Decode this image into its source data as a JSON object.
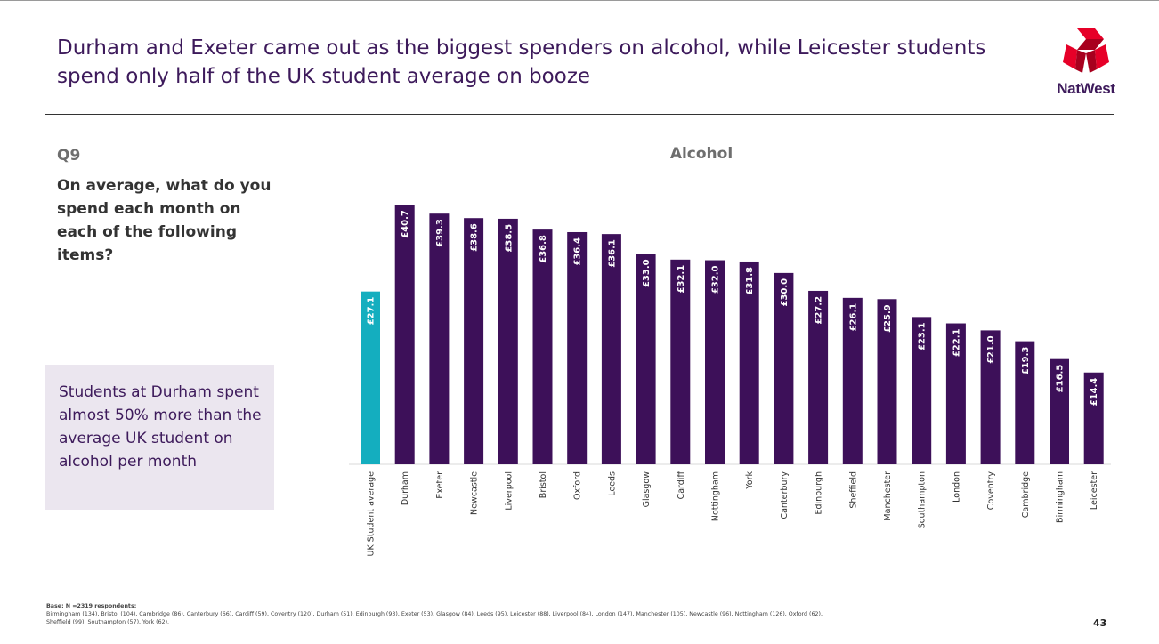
{
  "header": {
    "title_line1": "Durham and Exeter came out as the biggest spenders on alcohol, while Leicester students",
    "title_line2": "spend only half of the UK student average on booze",
    "logo_text": "NatWest",
    "logo_icon": "natwest-cubes-icon"
  },
  "question": {
    "number": "Q9",
    "text": "On average, what do you spend each month on each of the following items?"
  },
  "callout": {
    "text": "Students at Durham spent almost 50% more than the average UK student on alcohol per month"
  },
  "chart_data": {
    "type": "bar",
    "title": "Alcohol",
    "categories": [
      "UK Student average",
      "Durham",
      "Exeter",
      "Newcastle",
      "Liverpool",
      "Bristol",
      "Oxford",
      "Leeds",
      "Glasgow",
      "Cardiff",
      "Nottingham",
      "York",
      "Canterbury",
      "Edinburgh",
      "Sheffield",
      "Manchester",
      "Southampton",
      "London",
      "Coventry",
      "Cambridge",
      "Birmingham",
      "Leicester"
    ],
    "values": [
      27.1,
      40.7,
      39.3,
      38.6,
      38.5,
      36.8,
      36.4,
      36.1,
      33.0,
      32.1,
      32.0,
      31.8,
      30.0,
      27.2,
      26.1,
      25.9,
      23.1,
      22.1,
      21.0,
      19.3,
      16.5,
      14.4
    ],
    "labels": [
      "£27.1",
      "£40.7",
      "£39.3",
      "£38.6",
      "£38.5",
      "£36.8",
      "£36.4",
      "£36.1",
      "£33.0",
      "£32.1",
      "£32.0",
      "£31.8",
      "£30.0",
      "£27.2",
      "£26.1",
      "£25.9",
      "£23.1",
      "£22.1",
      "£21.0",
      "£19.3",
      "£16.5",
      "£14.4"
    ],
    "ylim": [
      0,
      41
    ],
    "grid": false,
    "legend": "none",
    "highlight_color": "#14aebf",
    "bar_color": "#3d1059"
  },
  "footnote": {
    "base": "Base: N =2319 respondents;",
    "list": "Birmingham (134),  Bristol (104), Cambridge (86), Canterbury (66), Cardiff (59), Coventry (120), Durham (51), Edinburgh (93), Exeter (53), Glasgow (84), Leeds (95), Leicester (88), Liverpool (84), London (147), Manchester (105), Newcastle (96), Nottingham (126), Oxford (62), Sheffield (99), Southampton (57), York (62)."
  },
  "page_number": "43"
}
